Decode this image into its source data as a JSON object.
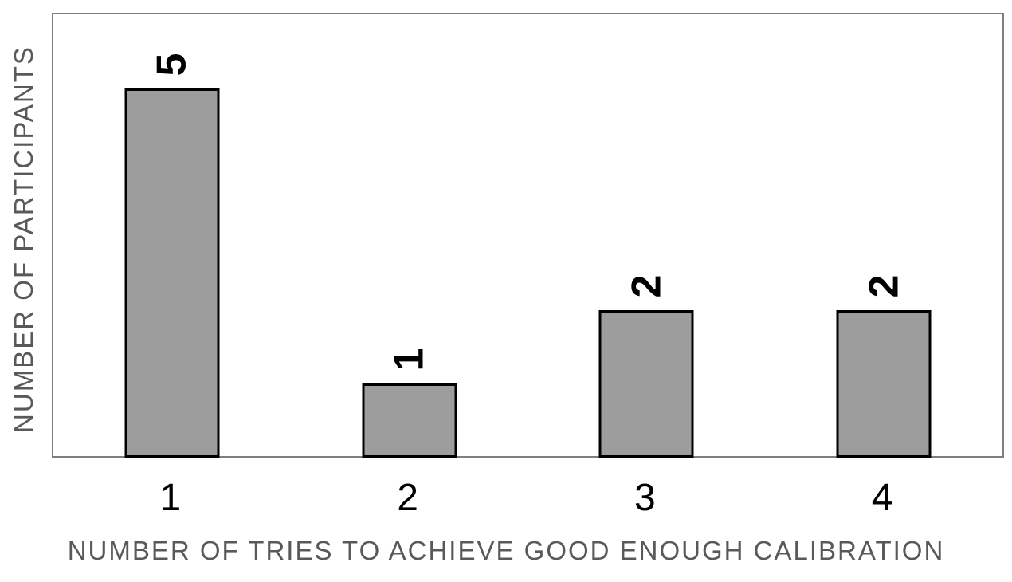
{
  "chart_data": {
    "type": "bar",
    "title": "",
    "categories": [
      "1",
      "2",
      "3",
      "4"
    ],
    "values": [
      5,
      1,
      2,
      2
    ],
    "data_labels": [
      "5",
      "1",
      "2",
      "2"
    ],
    "data_label_rotation_deg": -90,
    "xlabel": "NUMBER OF TRIES TO ACHIEVE GOOD ENOUGH CALIBRATION",
    "ylabel": "NUMBER OF PARTICIPANTS",
    "ylim": [
      0,
      6
    ],
    "grid": false,
    "legend": false,
    "y_tick_labels_visible": false,
    "colors": {
      "bar_fill": "#9d9d9d",
      "bar_border": "#000000",
      "plot_border": "#7f7f7f",
      "axis_title": "#595959",
      "category_label": "#000000",
      "data_label": "#000000",
      "background": "#ffffff"
    }
  }
}
